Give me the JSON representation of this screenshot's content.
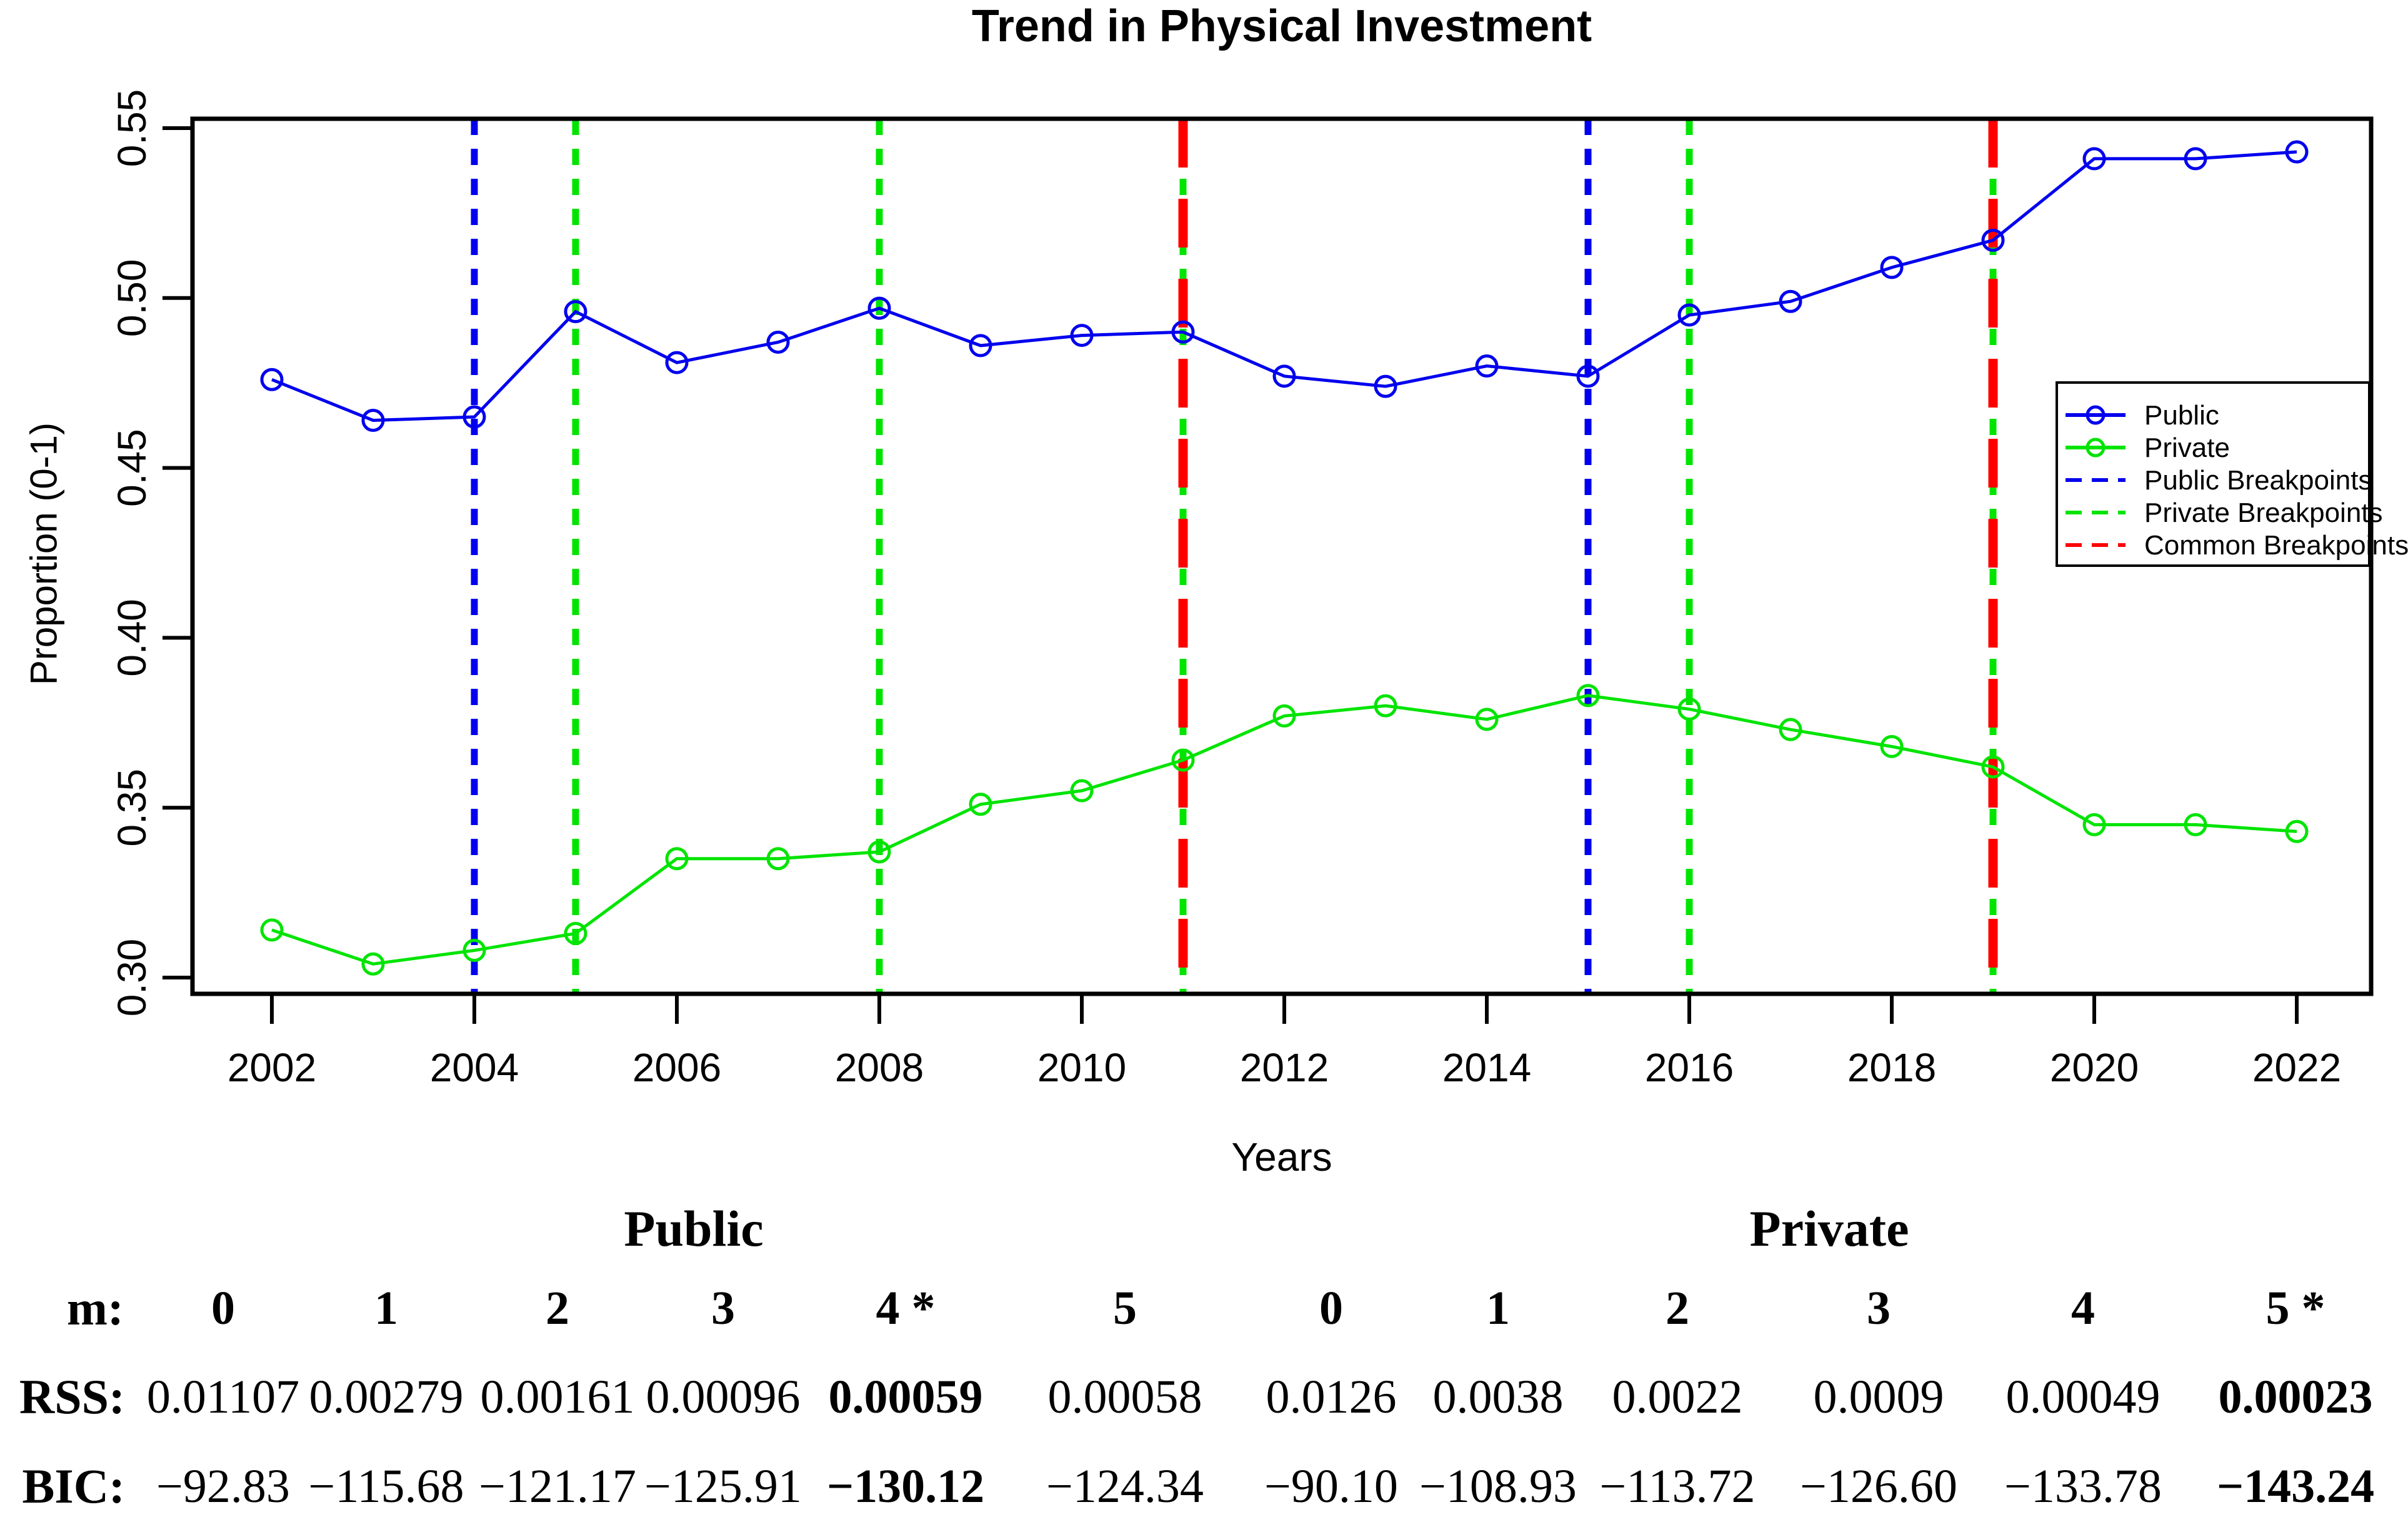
{
  "chart_data": {
    "type": "line",
    "title": "Trend in Physical Investment",
    "xlabel": "Years",
    "ylabel": "Proportion (0-1)",
    "x": [
      2002,
      2003,
      2004,
      2005,
      2006,
      2007,
      2008,
      2009,
      2010,
      2011,
      2012,
      2013,
      2014,
      2015,
      2016,
      2017,
      2018,
      2019,
      2020,
      2021,
      2022
    ],
    "xticks": [
      2002,
      2004,
      2006,
      2008,
      2010,
      2012,
      2014,
      2016,
      2018,
      2020,
      2022
    ],
    "yticks": [
      "0.30",
      "0.35",
      "0.40",
      "0.45",
      "0.50",
      "0.55"
    ],
    "xlim": [
      2001.2,
      2022.75
    ],
    "ylim": [
      0.295,
      0.553
    ],
    "grid": false,
    "legend_position": "right-middle",
    "series": [
      {
        "name": "Public",
        "color": "#0000ee",
        "marker": "open-circle",
        "values": [
          0.476,
          0.464,
          0.465,
          0.496,
          0.481,
          0.487,
          0.497,
          0.486,
          0.489,
          0.49,
          0.477,
          0.474,
          0.48,
          0.477,
          0.495,
          0.499,
          0.509,
          0.517,
          0.541,
          0.541,
          0.543
        ]
      },
      {
        "name": "Private",
        "color": "#00e400",
        "marker": "open-circle",
        "values": [
          0.314,
          0.304,
          0.308,
          0.313,
          0.335,
          0.335,
          0.337,
          0.351,
          0.355,
          0.364,
          0.377,
          0.38,
          0.376,
          0.383,
          0.379,
          0.373,
          0.368,
          0.362,
          0.345,
          0.345,
          0.343
        ]
      }
    ],
    "breakpoints": {
      "public": {
        "color": "#0000ee",
        "years": [
          2004,
          2015
        ]
      },
      "private": {
        "color": "#00e400",
        "years": [
          2005,
          2008,
          2016
        ]
      },
      "common": {
        "color": "#ff0000",
        "years": [
          2011,
          2019
        ]
      }
    },
    "legend": [
      {
        "label": "Public",
        "color": "#0000ee",
        "style": "solid-marker"
      },
      {
        "label": "Private",
        "color": "#00e400",
        "style": "solid-marker"
      },
      {
        "label": "Public Breakpoints",
        "color": "#0000ee",
        "style": "dashed"
      },
      {
        "label": "Private Breakpoints",
        "color": "#00e400",
        "style": "dashed"
      },
      {
        "label": "Common Breakpoints",
        "color": "#ff0000",
        "style": "dashed"
      }
    ]
  },
  "table": {
    "row_labels": {
      "m": "m:",
      "rss": "RSS:",
      "bic": "BIC:"
    },
    "groups": [
      {
        "title": "Public",
        "star_index": 4,
        "m": [
          "0",
          "1",
          "2",
          "3",
          "4 *",
          "5"
        ],
        "rss": [
          "0.01107",
          "0.00279",
          "0.00161",
          "0.00096",
          "0.00059",
          "0.00058"
        ],
        "bic": [
          "−92.83",
          "−115.68",
          "−121.17",
          "−125.91",
          "−130.12",
          "−124.34"
        ]
      },
      {
        "title": "Private",
        "star_index": 5,
        "m": [
          "0",
          "1",
          "2",
          "3",
          "4",
          "5 *"
        ],
        "rss": [
          "0.0126",
          "0.0038",
          "0.0022",
          "0.0009",
          "0.00049",
          "0.00023"
        ],
        "bic": [
          "−90.10",
          "−108.93",
          "−113.72",
          "−126.60",
          "−133.78",
          "−143.24"
        ]
      }
    ]
  }
}
